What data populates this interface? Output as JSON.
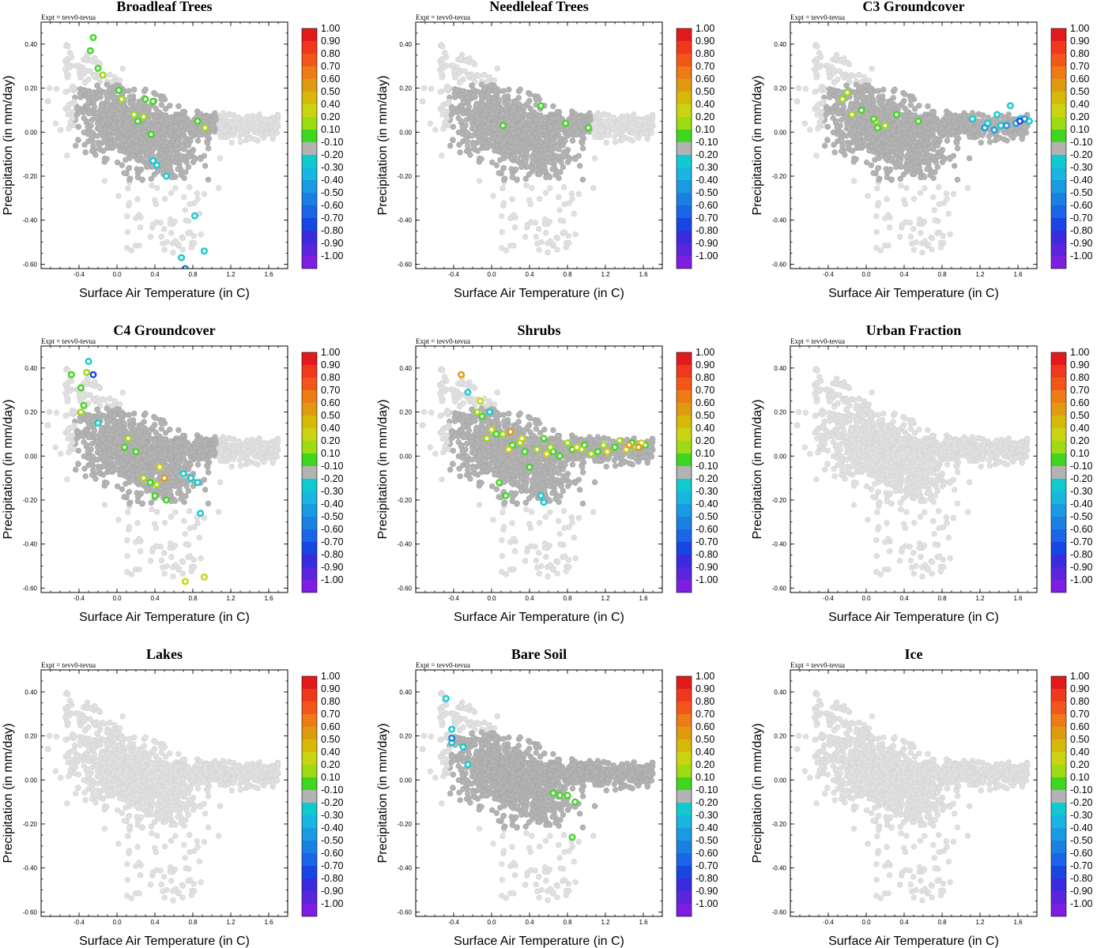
{
  "figure": {
    "experiment_label": "Expt = tevv0-tevua",
    "xlabel": "Surface Air Temperature (in C)",
    "ylabel": "Precipitation (in mm/day)"
  },
  "colorbar": {
    "labels": [
      "1.00",
      "0.90",
      "0.80",
      "0.70",
      "0.60",
      "0.50",
      "0.40",
      "0.20",
      "0.10",
      "-0.10",
      "-0.20",
      "-0.30",
      "-0.40",
      "-0.50",
      "-0.60",
      "-0.70",
      "-0.80",
      "-0.90",
      "-1.00"
    ],
    "colors": [
      "#e31a1c",
      "#f0391c",
      "#f3561a",
      "#ed7c17",
      "#e09a10",
      "#d7b90a",
      "#cad411",
      "#9ddb14",
      "#3fd620",
      "#b3b3b3",
      "#11cad0",
      "#18b6e0",
      "#1a9ae2",
      "#1a80e2",
      "#1a66e6",
      "#1746e2",
      "#3a2be0",
      "#5b25de",
      "#7e1ee0"
    ]
  },
  "chart_data": [
    {
      "type": "scatter",
      "title": "Broadleaf Trees",
      "xlabel": "Surface Air Temperature (in C)",
      "ylabel": "Precipitation (in mm/day)",
      "xlim": [
        -0.8,
        1.8
      ],
      "ylim": [
        -0.62,
        0.5
      ],
      "xticks": [
        "-0.4",
        "0.0",
        "0.4",
        "0.8",
        "1.2",
        "1.6"
      ],
      "yticks": [
        "0.40",
        "0.20",
        "0.00",
        "-0.20",
        "-0.40",
        "-0.60"
      ],
      "series": [
        {
          "name": "0.10",
          "color": "#3fd620",
          "x": [
            -0.25,
            -0.28,
            -0.2,
            0.02,
            0.3,
            0.38,
            0.22,
            0.36,
            0.85
          ],
          "y": [
            0.43,
            0.37,
            0.29,
            0.19,
            0.15,
            0.14,
            0.05,
            -0.01,
            0.05
          ]
        },
        {
          "name": "0.20",
          "color": "#9ddb14",
          "x": [
            -0.15,
            0.05,
            0.18,
            0.28,
            0.93
          ],
          "y": [
            0.26,
            0.15,
            0.08,
            0.07,
            0.02
          ]
        },
        {
          "name": "-0.20",
          "color": "#11cad0",
          "x": [
            0.92,
            0.82,
            0.68,
            0.38,
            0.42,
            0.52
          ],
          "y": [
            -0.54,
            -0.38,
            -0.57,
            -0.13,
            -0.15,
            -0.2
          ]
        },
        {
          "name": "-0.50",
          "color": "#1a80e2",
          "x": [
            0.72
          ],
          "y": [
            -0.62
          ]
        }
      ]
    },
    {
      "type": "scatter",
      "title": "Needleleaf Trees",
      "xlabel": "Surface Air Temperature (in C)",
      "ylabel": "Precipitation (in mm/day)",
      "xlim": [
        -0.8,
        1.8
      ],
      "ylim": [
        -0.62,
        0.5
      ],
      "xticks": [
        "-0.4",
        "0.0",
        "0.4",
        "0.8",
        "1.2",
        "1.6"
      ],
      "yticks": [
        "0.40",
        "0.20",
        "0.00",
        "-0.20",
        "-0.40",
        "-0.60"
      ],
      "series": [
        {
          "name": "0.10",
          "color": "#3fd620",
          "x": [
            0.52,
            0.78,
            1.02,
            0.12
          ],
          "y": [
            0.12,
            0.04,
            0.02,
            0.03
          ]
        }
      ]
    },
    {
      "type": "scatter",
      "title": "C3 Groundcover",
      "xlabel": "Surface Air Temperature (in C)",
      "ylabel": "Precipitation (in mm/day)",
      "xlim": [
        -0.8,
        1.8
      ],
      "ylim": [
        -0.62,
        0.5
      ],
      "xticks": [
        "-0.4",
        "0.0",
        "0.4",
        "0.8",
        "1.2",
        "1.6"
      ],
      "yticks": [
        "0.40",
        "0.20",
        "0.00",
        "-0.20",
        "-0.40",
        "-0.60"
      ],
      "series": [
        {
          "name": "0.20",
          "color": "#9ddb14",
          "x": [
            -0.2,
            -0.25,
            -0.15,
            0.1,
            0.2
          ],
          "y": [
            0.18,
            0.15,
            0.08,
            0.05,
            0.03
          ]
        },
        {
          "name": "0.10",
          "color": "#3fd620",
          "x": [
            0.08,
            0.12,
            0.32,
            0.55,
            -0.05
          ],
          "y": [
            0.06,
            0.02,
            0.08,
            0.05,
            0.1
          ]
        },
        {
          "name": "-0.20",
          "color": "#11cad0",
          "x": [
            1.12,
            1.28,
            1.38,
            1.52,
            1.62,
            1.72,
            1.42
          ],
          "y": [
            0.06,
            0.04,
            0.08,
            0.12,
            0.06,
            0.05,
            0.03
          ]
        },
        {
          "name": "-0.40",
          "color": "#1a9ae2",
          "x": [
            1.25,
            1.35,
            1.48,
            1.58,
            1.67
          ],
          "y": [
            0.02,
            0.01,
            0.03,
            0.04,
            0.06
          ]
        },
        {
          "name": "-0.70",
          "color": "#1746e2",
          "x": [
            1.88,
            1.62
          ],
          "y": [
            0.06,
            0.05
          ]
        }
      ]
    },
    {
      "type": "scatter",
      "title": "C4 Groundcover",
      "xlabel": "Surface Air Temperature (in C)",
      "ylabel": "Precipitation (in mm/day)",
      "xlim": [
        -0.8,
        1.8
      ],
      "ylim": [
        -0.62,
        0.5
      ],
      "xticks": [
        "-0.4",
        "0.0",
        "0.4",
        "0.8",
        "1.2",
        "1.6"
      ],
      "yticks": [
        "0.40",
        "0.20",
        "0.00",
        "-0.20",
        "-0.40",
        "-0.60"
      ],
      "series": [
        {
          "name": "0.10",
          "color": "#3fd620",
          "x": [
            -0.48,
            -0.38,
            -0.35,
            0.08,
            0.2,
            0.35,
            0.4,
            0.52
          ],
          "y": [
            0.37,
            0.31,
            0.23,
            0.04,
            0.02,
            -0.12,
            -0.18,
            -0.2
          ]
        },
        {
          "name": "0.20",
          "color": "#9ddb14",
          "x": [
            -0.32,
            -0.38,
            0.12,
            0.28,
            0.42
          ],
          "y": [
            0.38,
            0.2,
            0.08,
            -0.1,
            -0.13
          ]
        },
        {
          "name": "0.40",
          "color": "#cad411",
          "x": [
            0.72,
            0.92,
            0.45
          ],
          "y": [
            -0.57,
            -0.55,
            -0.05
          ]
        },
        {
          "name": "0.60",
          "color": "#e09a10",
          "x": [
            0.5
          ],
          "y": [
            -0.1
          ]
        },
        {
          "name": "-0.20",
          "color": "#11cad0",
          "x": [
            -0.3,
            -0.2,
            0.7,
            0.78,
            0.85,
            0.88
          ],
          "y": [
            0.43,
            0.15,
            -0.08,
            -0.1,
            -0.12,
            -0.26
          ]
        },
        {
          "name": "-0.70",
          "color": "#1746e2",
          "x": [
            -0.25
          ],
          "y": [
            0.37
          ]
        }
      ]
    },
    {
      "type": "scatter",
      "title": "Shrubs",
      "xlabel": "Surface Air Temperature (in C)",
      "ylabel": "Precipitation (in mm/day)",
      "xlim": [
        -0.8,
        1.8
      ],
      "ylim": [
        -0.62,
        0.5
      ],
      "xticks": [
        "-0.4",
        "0.0",
        "0.4",
        "0.8",
        "1.2",
        "1.6"
      ],
      "yticks": [
        "0.40",
        "0.20",
        "0.00",
        "-0.20",
        "-0.40",
        "-0.60"
      ],
      "series": [
        {
          "name": "0.10",
          "color": "#3fd620",
          "x": [
            -0.1,
            0.05,
            0.22,
            0.35,
            0.55,
            0.72,
            0.85,
            0.98,
            1.12,
            1.3,
            1.48,
            1.62,
            0.08,
            0.15,
            0.4,
            0.65
          ],
          "y": [
            0.18,
            0.1,
            0.05,
            0.02,
            0.08,
            0.0,
            0.03,
            0.05,
            0.02,
            0.04,
            0.06,
            0.05,
            -0.12,
            -0.18,
            -0.05,
            0.02
          ]
        },
        {
          "name": "0.20",
          "color": "#9ddb14",
          "x": [
            -0.15,
            -0.05,
            0.12,
            0.3,
            0.48,
            0.62,
            0.8,
            0.95,
            1.05,
            1.18,
            1.35,
            1.52
          ],
          "y": [
            0.2,
            0.08,
            0.1,
            0.06,
            0.03,
            0.04,
            0.06,
            0.03,
            0.01,
            0.05,
            0.07,
            0.04
          ]
        },
        {
          "name": "0.40",
          "color": "#cad411",
          "x": [
            -0.12,
            0.0,
            0.18,
            0.32,
            0.58,
            0.9,
            1.22,
            1.42,
            1.58
          ],
          "y": [
            0.25,
            0.12,
            0.03,
            0.08,
            0.01,
            0.04,
            0.02,
            0.03,
            0.06
          ]
        },
        {
          "name": "0.60",
          "color": "#e09a10",
          "x": [
            -0.32,
            0.2,
            1.45,
            1.55,
            1.88
          ],
          "y": [
            0.37,
            0.11,
            0.05,
            0.04,
            0.06
          ]
        },
        {
          "name": "-0.20",
          "color": "#11cad0",
          "x": [
            -0.25,
            -0.02,
            0.52,
            0.55
          ],
          "y": [
            0.29,
            0.2,
            -0.18,
            -0.21
          ]
        }
      ]
    },
    {
      "type": "scatter",
      "title": "Urban Fraction",
      "xlabel": "Surface Air Temperature (in C)",
      "ylabel": "Precipitation (in mm/day)",
      "xlim": [
        -0.8,
        1.8
      ],
      "ylim": [
        -0.62,
        0.5
      ],
      "xticks": [
        "-0.4",
        "0.0",
        "0.4",
        "0.8",
        "1.2",
        "1.6"
      ],
      "yticks": [
        "0.40",
        "0.20",
        "0.00",
        "-0.20",
        "-0.40",
        "-0.60"
      ],
      "series": []
    },
    {
      "type": "scatter",
      "title": "Lakes",
      "xlabel": "Surface Air Temperature (in C)",
      "ylabel": "Precipitation (in mm/day)",
      "xlim": [
        -0.8,
        1.8
      ],
      "ylim": [
        -0.62,
        0.5
      ],
      "xticks": [
        "-0.4",
        "0.0",
        "0.4",
        "0.8",
        "1.2",
        "1.6"
      ],
      "yticks": [
        "0.40",
        "0.20",
        "0.00",
        "-0.20",
        "-0.40",
        "-0.60"
      ],
      "series": []
    },
    {
      "type": "scatter",
      "title": "Bare Soil",
      "xlabel": "Surface Air Temperature (in C)",
      "ylabel": "Precipitation (in mm/day)",
      "xlim": [
        -0.8,
        1.8
      ],
      "ylim": [
        -0.62,
        0.5
      ],
      "xticks": [
        "-0.4",
        "0.0",
        "0.4",
        "0.8",
        "1.2",
        "1.6"
      ],
      "yticks": [
        "0.40",
        "0.20",
        "0.00",
        "-0.20",
        "-0.40",
        "-0.60"
      ],
      "series": [
        {
          "name": "-0.20",
          "color": "#11cad0",
          "x": [
            -0.48,
            -0.42,
            -0.42,
            -0.3,
            -0.25
          ],
          "y": [
            0.37,
            0.23,
            0.17,
            0.15,
            0.07
          ]
        },
        {
          "name": "-0.50",
          "color": "#1a80e2",
          "x": [
            -0.42
          ],
          "y": [
            0.19
          ]
        },
        {
          "name": "0.10",
          "color": "#3fd620",
          "x": [
            0.65,
            0.72,
            0.8,
            0.88,
            0.85
          ],
          "y": [
            -0.06,
            -0.07,
            -0.07,
            -0.1,
            -0.26
          ]
        }
      ]
    },
    {
      "type": "scatter",
      "title": "Ice",
      "xlabel": "Surface Air Temperature (in C)",
      "ylabel": "Precipitation (in mm/day)",
      "xlim": [
        -0.8,
        1.8
      ],
      "ylim": [
        -0.62,
        0.5
      ],
      "xticks": [
        "-0.4",
        "0.0",
        "0.4",
        "0.8",
        "1.2",
        "1.6"
      ],
      "yticks": [
        "0.40",
        "0.20",
        "0.00",
        "-0.20",
        "-0.40",
        "-0.60"
      ],
      "series": []
    }
  ]
}
